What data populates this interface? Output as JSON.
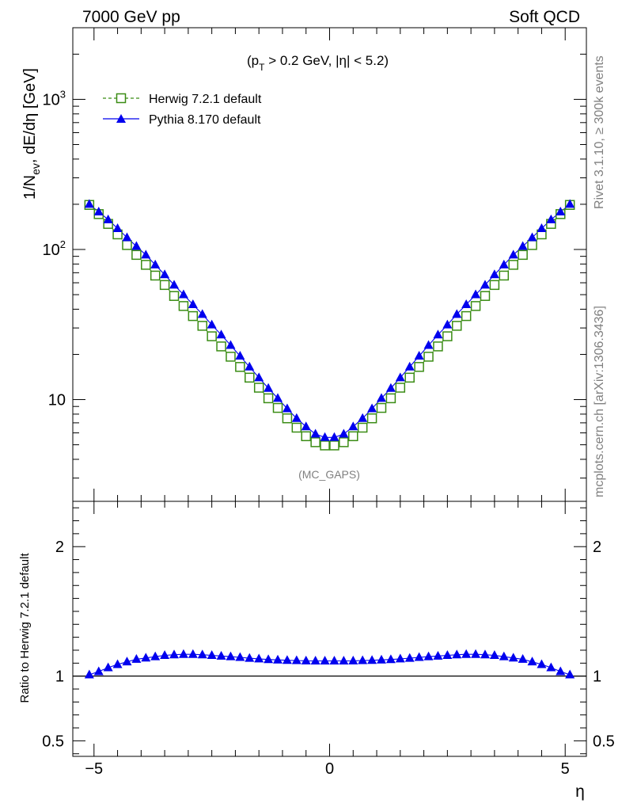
{
  "header": {
    "left": "7000 GeV pp",
    "right": "Soft QCD"
  },
  "side": {
    "rivet": "Rivet 3.1.10, ≥ 300k events",
    "mcplots": "mcplots.cern.ch [arXiv:1306.3436]"
  },
  "watermark": "(MC_GAPS)",
  "cut_label": {
    "pre": "(p",
    "sub": "T",
    "post": " > 0.2 GeV, |η| < 5.2)"
  },
  "colors": {
    "herwig": "#3a8c14",
    "pythia": "#0000ee"
  },
  "chart_data": [
    {
      "type": "scatter",
      "panel": "main",
      "ylabel": {
        "a": "1/N",
        "sub": "ev",
        "b": ", dE/dη [GeV]"
      },
      "yscale": "log",
      "ylim": [
        2.1,
        3000
      ],
      "xlim": [
        -5.45,
        5.45
      ],
      "ytick_labels": [
        "10",
        "10",
        "10"
      ],
      "ytick_exponents": [
        "",
        "2",
        "3"
      ],
      "legend_position": "top-left",
      "x": [
        -5.1,
        -4.9,
        -4.7,
        -4.5,
        -4.3,
        -4.1,
        -3.9,
        -3.7,
        -3.5,
        -3.3,
        -3.1,
        -2.9,
        -2.7,
        -2.5,
        -2.3,
        -2.1,
        -1.9,
        -1.7,
        -1.5,
        -1.3,
        -1.1,
        -0.9,
        -0.7,
        -0.5,
        -0.3,
        -0.1,
        0.1,
        0.3,
        0.5,
        0.7,
        0.9,
        1.1,
        1.3,
        1.5,
        1.7,
        1.9,
        2.1,
        2.3,
        2.5,
        2.7,
        2.9,
        3.1,
        3.3,
        3.5,
        3.7,
        3.9,
        4.1,
        4.3,
        4.5,
        4.7,
        4.9,
        5.1
      ],
      "series": [
        {
          "name": "Herwig 7.2.1 default",
          "marker": "open-square",
          "line": "dashed",
          "values": [
            198,
            172,
            148,
            126,
            107,
            92,
            79,
            67,
            58,
            49,
            42,
            36,
            31,
            26.4,
            22.6,
            19.3,
            16.5,
            14,
            12,
            10.2,
            8.8,
            7.5,
            6.5,
            5.7,
            5.2,
            4.95,
            4.95,
            5.2,
            5.7,
            6.5,
            7.5,
            8.8,
            10.2,
            12,
            14,
            16.5,
            19.3,
            22.6,
            26.4,
            31,
            36,
            42,
            49,
            58,
            67,
            79,
            92,
            107,
            126,
            148,
            172,
            198
          ]
        },
        {
          "name": "Pythia 8.170 default",
          "marker": "filled-triangle",
          "line": "solid",
          "values": [
            200,
            178,
            158,
            138,
            120,
            105,
            92,
            79,
            68,
            58,
            50,
            43,
            37,
            31.5,
            27,
            23,
            19.5,
            16.5,
            14,
            11.9,
            10.2,
            8.7,
            7.5,
            6.6,
            5.9,
            5.6,
            5.6,
            5.9,
            6.6,
            7.5,
            8.7,
            10.2,
            11.9,
            14,
            16.5,
            19.5,
            23,
            27,
            31.5,
            37,
            43,
            50,
            58,
            68,
            79,
            92,
            105,
            120,
            138,
            158,
            178,
            200
          ]
        }
      ]
    },
    {
      "type": "scatter",
      "panel": "ratio",
      "ylabel": "Ratio to Herwig 7.2.1 default",
      "xlabel": "η",
      "ylim": [
        0.38,
        2.35
      ],
      "xlim": [
        -5.45,
        5.45
      ],
      "xtick_labels": [
        "−5",
        "0",
        "5"
      ],
      "ytick_labels": [
        "0.5",
        "1",
        "2"
      ],
      "reference_line": 1,
      "series": [
        {
          "name": "Pythia 8.170 default",
          "values": [
            1.01,
            1.035,
            1.065,
            1.09,
            1.11,
            1.13,
            1.14,
            1.15,
            1.16,
            1.165,
            1.168,
            1.168,
            1.165,
            1.16,
            1.155,
            1.15,
            1.145,
            1.138,
            1.133,
            1.128,
            1.125,
            1.122,
            1.12,
            1.118,
            1.117,
            1.117,
            1.117,
            1.117,
            1.118,
            1.12,
            1.122,
            1.125,
            1.128,
            1.133,
            1.138,
            1.145,
            1.15,
            1.155,
            1.16,
            1.165,
            1.168,
            1.168,
            1.165,
            1.16,
            1.15,
            1.14,
            1.13,
            1.11,
            1.09,
            1.065,
            1.035,
            1.01
          ]
        }
      ]
    }
  ]
}
